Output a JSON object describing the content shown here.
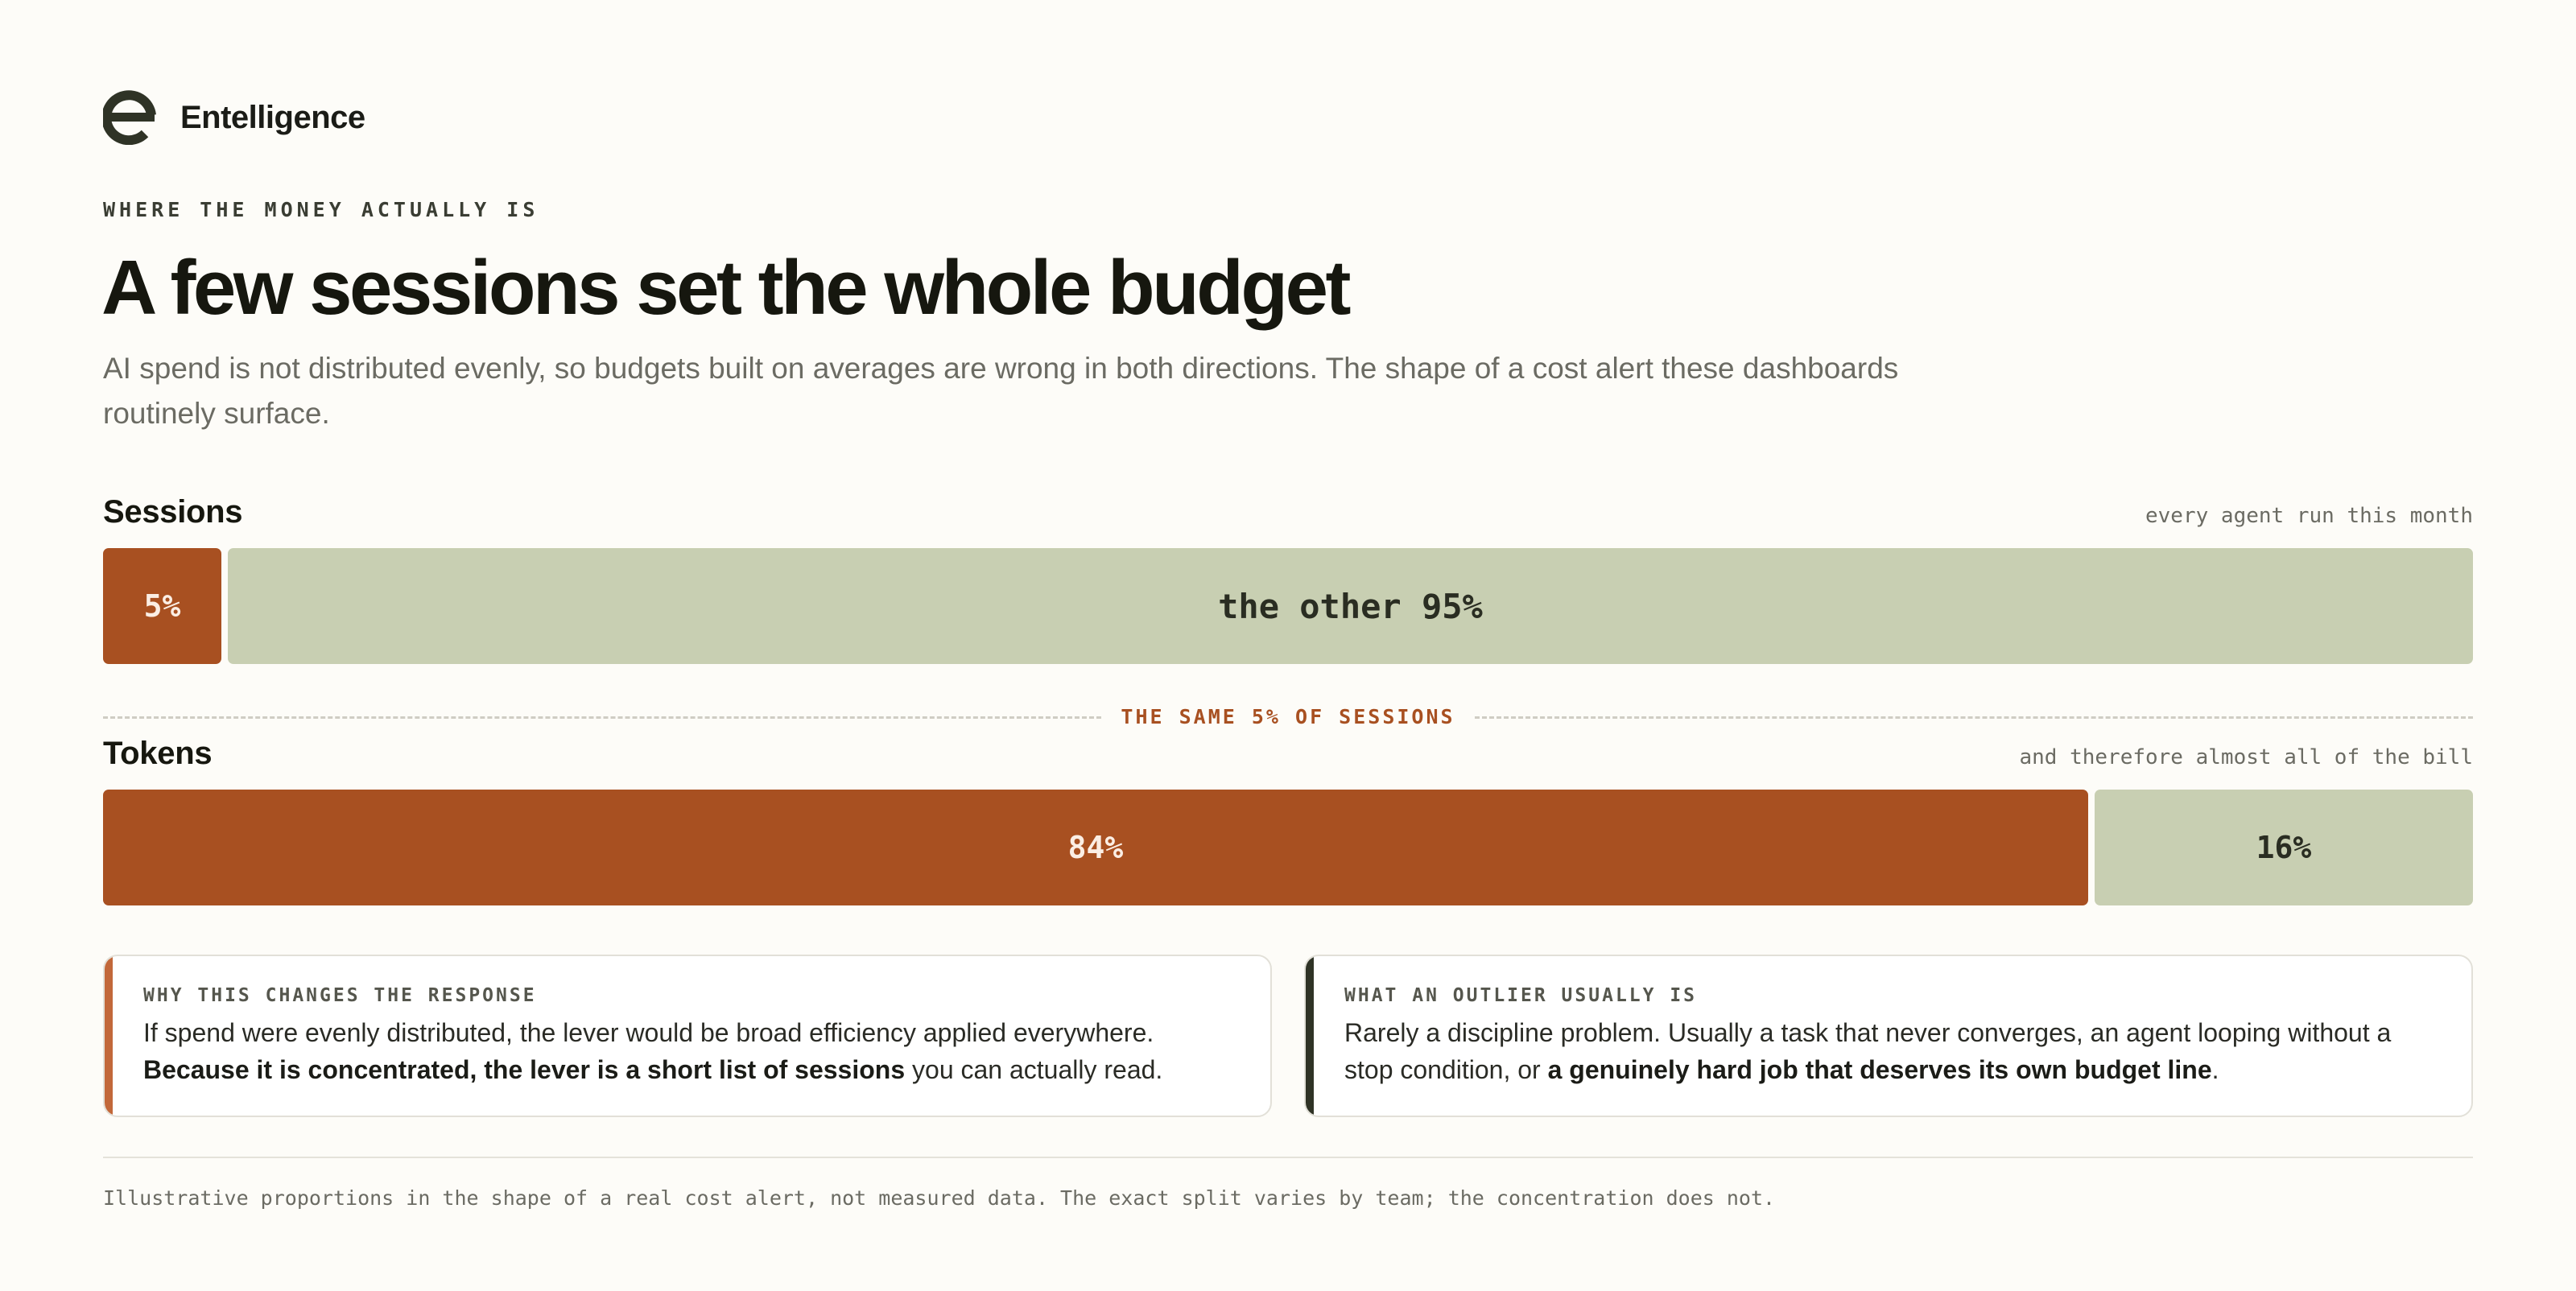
{
  "brand": {
    "name": "Entelligence",
    "logo_icon": "entelligence-logo-icon"
  },
  "header": {
    "eyebrow": "WHERE THE MONEY ACTUALLY IS",
    "title": "A few sessions set the whole budget",
    "subtitle": "AI spend is not distributed evenly, so budgets built on averages are wrong in both directions. The shape of a cost alert these dashboards routinely surface."
  },
  "colors": {
    "hot": "#a85021",
    "cool": "#c8cfb2",
    "dark_accent": "#2f3326",
    "background": "#fdfcf8"
  },
  "divider_label": "THE SAME 5% OF SESSIONS",
  "chart_data": {
    "type": "bar",
    "orientation": "horizontal-stacked",
    "rows": [
      {
        "label": "Sessions",
        "note": "every agent run this month",
        "segments": [
          {
            "value": 5,
            "label": "5%",
            "color": "#a85021"
          },
          {
            "value": 95,
            "label": "the other 95%",
            "color": "#c8cfb2"
          }
        ]
      },
      {
        "label": "Tokens",
        "note": "and therefore almost all of the bill",
        "segments": [
          {
            "value": 84,
            "label": "84%",
            "color": "#a85021"
          },
          {
            "value": 16,
            "label": "16%",
            "color": "#c8cfb2"
          }
        ]
      }
    ],
    "unit": "%"
  },
  "cards": [
    {
      "kicker": "WHY THIS CHANGES THE RESPONSE",
      "text_1": "If spend were evenly distributed, the lever would be broad efficiency applied everywhere. ",
      "bold_1": "Because it is concentrated, the lever is a short list of sessions",
      "text_2": " you can actually read.",
      "accent": "#c2683a"
    },
    {
      "kicker": "WHAT AN OUTLIER USUALLY IS",
      "text_1": "Rarely a discipline problem. Usually a task that never converges, an agent looping without a stop condition, or ",
      "bold_1": "a genuinely hard job that deserves its own budget line",
      "text_2": ".",
      "accent": "#2f3326"
    }
  ],
  "footnote": "Illustrative proportions in the shape of a real cost alert, not measured data. The exact split varies by team; the concentration does not."
}
